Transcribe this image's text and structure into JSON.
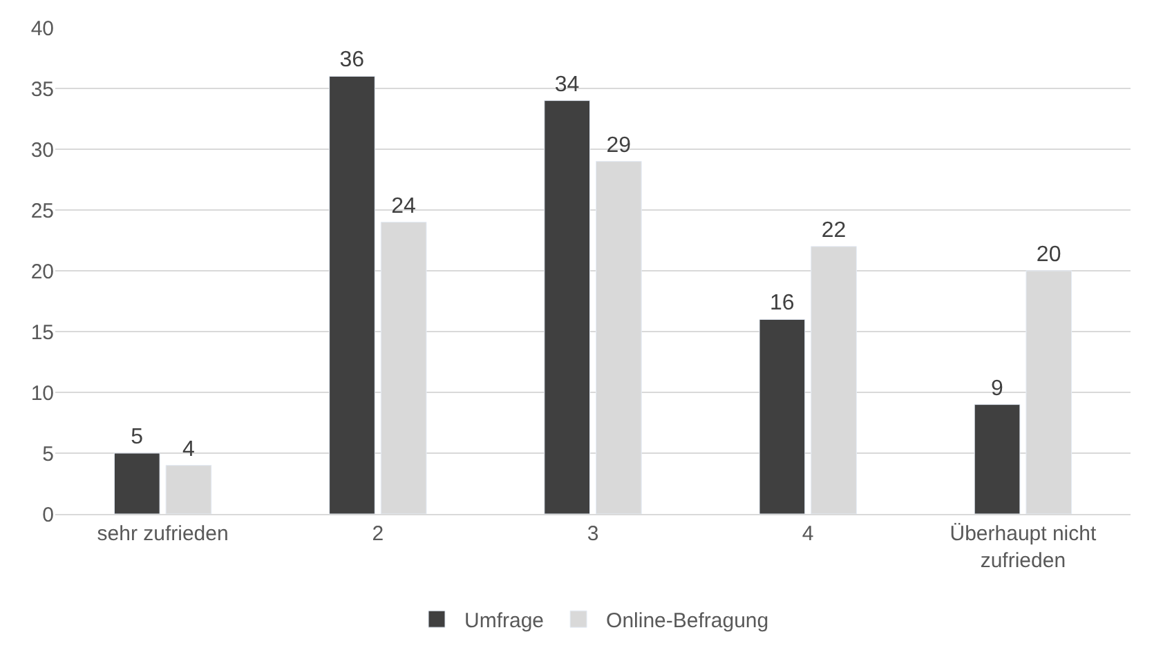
{
  "chart_data": {
    "type": "bar",
    "categories": [
      "sehr zufrieden",
      "2",
      "3",
      "4",
      "Überhaupt nicht zufrieden"
    ],
    "series": [
      {
        "name": "Umfrage",
        "color": "#404040",
        "values": [
          5,
          36,
          34,
          16,
          9
        ]
      },
      {
        "name": "Online-Befragung",
        "color": "#d9d9d9",
        "values": [
          4,
          24,
          29,
          22,
          20
        ]
      }
    ],
    "ylim": [
      0,
      40
    ],
    "yticks": [
      0,
      5,
      10,
      15,
      20,
      25,
      30,
      35,
      40
    ],
    "grid": "y",
    "legend": "bottom",
    "data_labels": true
  }
}
